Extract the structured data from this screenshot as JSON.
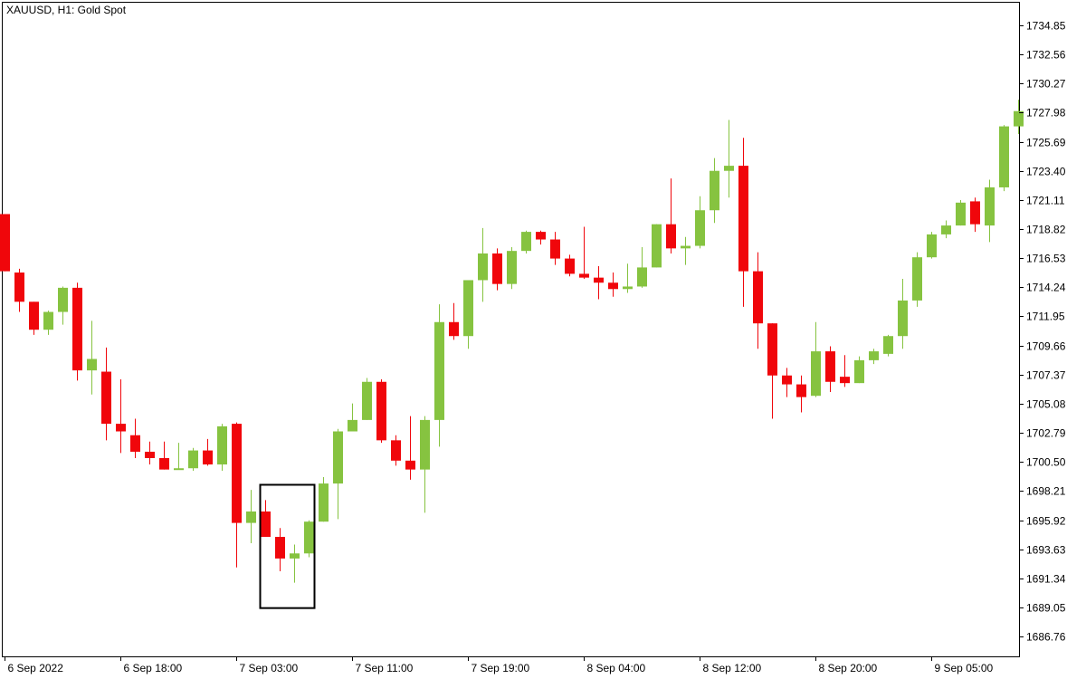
{
  "chart_data": {
    "type": "candlestick",
    "title": "XAUUSD, H1:  Gold Spot",
    "symbol": "XAUUSD",
    "timeframe": "H1",
    "description": "Gold Spot",
    "colors": {
      "bull": "#86c340",
      "bear": "#f0060b",
      "highlight_box": "#000000",
      "axis": "#000000"
    },
    "ylim": [
      1685.2,
      1736.7
    ],
    "y_ticks": [
      "1734.85",
      "1732.56",
      "1730.27",
      "1727.98",
      "1725.69",
      "1723.40",
      "1721.11",
      "1718.82",
      "1716.53",
      "1714.24",
      "1711.95",
      "1709.66",
      "1707.37",
      "1705.08",
      "1702.79",
      "1700.50",
      "1698.21",
      "1695.92",
      "1693.63",
      "1691.34",
      "1689.05",
      "1686.76"
    ],
    "x_labels": [
      {
        "index": 0,
        "label": "6 Sep 2022"
      },
      {
        "index": 8,
        "label": "6 Sep 18:00"
      },
      {
        "index": 16,
        "label": "7 Sep 03:00"
      },
      {
        "index": 24,
        "label": "7 Sep 11:00"
      },
      {
        "index": 32,
        "label": "7 Sep 19:00"
      },
      {
        "index": 40,
        "label": "8 Sep 04:00"
      },
      {
        "index": 48,
        "label": "8 Sep 12:00"
      },
      {
        "index": 56,
        "label": "8 Sep 20:00"
      },
      {
        "index": 64,
        "label": "9 Sep 05:00"
      }
    ],
    "candles": [
      {
        "o": 1720.0,
        "h": 1720.0,
        "l": 1715.5,
        "c": 1715.5
      },
      {
        "o": 1715.4,
        "h": 1715.7,
        "l": 1712.3,
        "c": 1713.1
      },
      {
        "o": 1713.1,
        "h": 1713.1,
        "l": 1710.5,
        "c": 1710.9
      },
      {
        "o": 1710.9,
        "h": 1712.4,
        "l": 1710.5,
        "c": 1712.3
      },
      {
        "o": 1712.3,
        "h": 1714.3,
        "l": 1711.3,
        "c": 1714.2
      },
      {
        "o": 1714.2,
        "h": 1714.6,
        "l": 1706.9,
        "c": 1707.7
      },
      {
        "o": 1707.7,
        "h": 1711.6,
        "l": 1705.8,
        "c": 1708.6
      },
      {
        "o": 1707.6,
        "h": 1709.5,
        "l": 1702.2,
        "c": 1703.5
      },
      {
        "o": 1703.5,
        "h": 1707.0,
        "l": 1701.2,
        "c": 1702.9
      },
      {
        "o": 1702.6,
        "h": 1703.9,
        "l": 1700.8,
        "c": 1701.3
      },
      {
        "o": 1701.3,
        "h": 1702.1,
        "l": 1700.3,
        "c": 1700.8
      },
      {
        "o": 1700.8,
        "h": 1702.1,
        "l": 1699.9,
        "c": 1699.9
      },
      {
        "o": 1699.9,
        "h": 1702.0,
        "l": 1699.9,
        "c": 1700.0
      },
      {
        "o": 1700.0,
        "h": 1701.6,
        "l": 1699.8,
        "c": 1701.4
      },
      {
        "o": 1701.4,
        "h": 1702.3,
        "l": 1700.2,
        "c": 1700.3
      },
      {
        "o": 1700.3,
        "h": 1703.5,
        "l": 1699.8,
        "c": 1703.3
      },
      {
        "o": 1703.5,
        "h": 1703.6,
        "l": 1692.2,
        "c": 1695.7
      },
      {
        "o": 1695.7,
        "h": 1698.3,
        "l": 1694.1,
        "c": 1696.6
      },
      {
        "o": 1696.6,
        "h": 1697.5,
        "l": 1694.6,
        "c": 1694.6
      },
      {
        "o": 1694.6,
        "h": 1695.3,
        "l": 1691.9,
        "c": 1692.9
      },
      {
        "o": 1692.9,
        "h": 1694.0,
        "l": 1691.0,
        "c": 1693.3
      },
      {
        "o": 1693.3,
        "h": 1695.9,
        "l": 1693.0,
        "c": 1695.8
      },
      {
        "o": 1695.8,
        "h": 1699.3,
        "l": 1695.8,
        "c": 1698.8
      },
      {
        "o": 1698.8,
        "h": 1703.1,
        "l": 1696.0,
        "c": 1702.9
      },
      {
        "o": 1702.9,
        "h": 1705.1,
        "l": 1702.9,
        "c": 1703.8
      },
      {
        "o": 1703.8,
        "h": 1707.1,
        "l": 1703.8,
        "c": 1706.8
      },
      {
        "o": 1706.8,
        "h": 1707.0,
        "l": 1702.0,
        "c": 1702.2
      },
      {
        "o": 1702.2,
        "h": 1702.6,
        "l": 1700.2,
        "c": 1700.6
      },
      {
        "o": 1700.6,
        "h": 1704.1,
        "l": 1699.1,
        "c": 1699.9
      },
      {
        "o": 1699.9,
        "h": 1704.1,
        "l": 1696.5,
        "c": 1703.8
      },
      {
        "o": 1703.8,
        "h": 1712.9,
        "l": 1701.7,
        "c": 1711.5
      },
      {
        "o": 1711.5,
        "h": 1713.0,
        "l": 1710.1,
        "c": 1710.4
      },
      {
        "o": 1710.4,
        "h": 1714.8,
        "l": 1709.4,
        "c": 1714.8
      },
      {
        "o": 1714.8,
        "h": 1718.9,
        "l": 1713.1,
        "c": 1716.9
      },
      {
        "o": 1716.9,
        "h": 1717.3,
        "l": 1714.0,
        "c": 1714.5
      },
      {
        "o": 1714.5,
        "h": 1717.4,
        "l": 1714.1,
        "c": 1717.1
      },
      {
        "o": 1717.1,
        "h": 1718.7,
        "l": 1716.9,
        "c": 1718.6
      },
      {
        "o": 1718.6,
        "h": 1718.7,
        "l": 1717.6,
        "c": 1718.0
      },
      {
        "o": 1718.0,
        "h": 1718.6,
        "l": 1716.0,
        "c": 1716.5
      },
      {
        "o": 1716.5,
        "h": 1716.8,
        "l": 1715.1,
        "c": 1715.3
      },
      {
        "o": 1715.3,
        "h": 1719.0,
        "l": 1714.9,
        "c": 1715.0
      },
      {
        "o": 1715.0,
        "h": 1715.9,
        "l": 1713.3,
        "c": 1714.6
      },
      {
        "o": 1714.6,
        "h": 1715.4,
        "l": 1713.5,
        "c": 1714.1
      },
      {
        "o": 1714.1,
        "h": 1716.1,
        "l": 1713.8,
        "c": 1714.3
      },
      {
        "o": 1714.3,
        "h": 1717.4,
        "l": 1714.2,
        "c": 1715.8
      },
      {
        "o": 1715.8,
        "h": 1719.2,
        "l": 1715.8,
        "c": 1719.2
      },
      {
        "o": 1719.2,
        "h": 1722.8,
        "l": 1716.9,
        "c": 1717.3
      },
      {
        "o": 1717.3,
        "h": 1718.2,
        "l": 1716.0,
        "c": 1717.5
      },
      {
        "o": 1717.5,
        "h": 1721.4,
        "l": 1717.3,
        "c": 1720.3
      },
      {
        "o": 1720.3,
        "h": 1724.4,
        "l": 1719.3,
        "c": 1723.4
      },
      {
        "o": 1723.4,
        "h": 1727.4,
        "l": 1721.3,
        "c": 1723.8
      },
      {
        "o": 1723.8,
        "h": 1726.0,
        "l": 1712.7,
        "c": 1715.5
      },
      {
        "o": 1715.5,
        "h": 1717.0,
        "l": 1709.4,
        "c": 1711.4
      },
      {
        "o": 1711.4,
        "h": 1711.4,
        "l": 1703.9,
        "c": 1707.3
      },
      {
        "o": 1707.3,
        "h": 1707.9,
        "l": 1705.6,
        "c": 1706.6
      },
      {
        "o": 1706.6,
        "h": 1707.3,
        "l": 1704.4,
        "c": 1705.6
      },
      {
        "o": 1705.7,
        "h": 1711.5,
        "l": 1705.6,
        "c": 1709.2
      },
      {
        "o": 1709.2,
        "h": 1709.6,
        "l": 1706.0,
        "c": 1706.8
      },
      {
        "o": 1707.2,
        "h": 1708.9,
        "l": 1706.4,
        "c": 1706.7
      },
      {
        "o": 1706.7,
        "h": 1708.8,
        "l": 1706.7,
        "c": 1708.5
      },
      {
        "o": 1708.5,
        "h": 1709.4,
        "l": 1708.2,
        "c": 1709.2
      },
      {
        "o": 1709.0,
        "h": 1710.5,
        "l": 1708.8,
        "c": 1710.4
      },
      {
        "o": 1710.4,
        "h": 1714.9,
        "l": 1709.4,
        "c": 1713.2
      },
      {
        "o": 1713.2,
        "h": 1717.0,
        "l": 1712.7,
        "c": 1716.6
      },
      {
        "o": 1716.6,
        "h": 1718.6,
        "l": 1716.5,
        "c": 1718.4
      },
      {
        "o": 1718.4,
        "h": 1719.5,
        "l": 1718.1,
        "c": 1719.1
      },
      {
        "o": 1719.1,
        "h": 1721.1,
        "l": 1719.1,
        "c": 1720.9
      },
      {
        "o": 1721.0,
        "h": 1721.3,
        "l": 1718.6,
        "c": 1719.2
      },
      {
        "o": 1719.1,
        "h": 1722.7,
        "l": 1717.8,
        "c": 1722.1
      },
      {
        "o": 1722.1,
        "h": 1727.0,
        "l": 1721.8,
        "c": 1726.9
      },
      {
        "o": 1726.9,
        "h": 1729.0,
        "l": 1726.3,
        "c": 1728.1
      }
    ],
    "highlight_box": {
      "from_index": 18,
      "to_index": 21,
      "price_high": 1698.7,
      "price_low": 1689.0
    }
  }
}
